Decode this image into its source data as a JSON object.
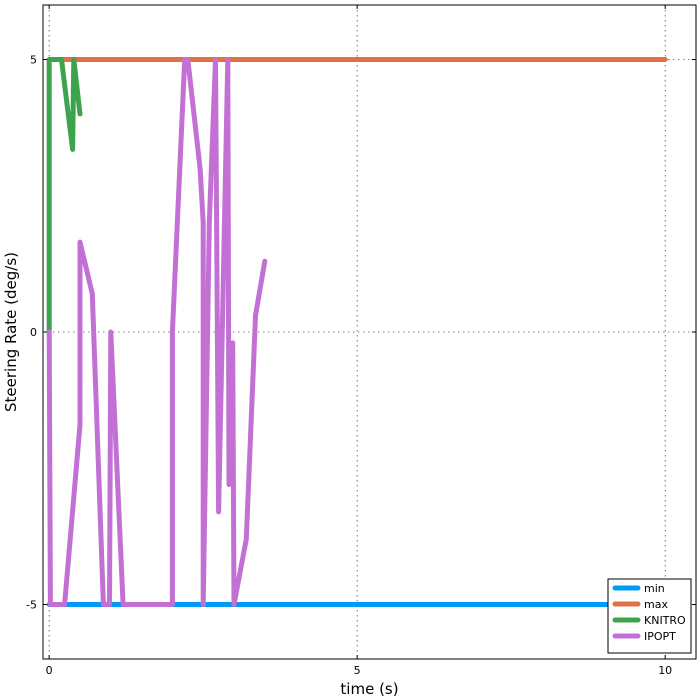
{
  "chart_data": {
    "type": "line",
    "title": "",
    "xlabel": "time (s)",
    "ylabel": "Steering Rate (deg/s)",
    "xlim": [
      -0.1,
      10.5
    ],
    "ylim": [
      -6.0,
      6.0
    ],
    "xticks": [
      0,
      5,
      10
    ],
    "xtick_labels": [
      "0",
      "5",
      "10"
    ],
    "yticks": [
      -5,
      0,
      5
    ],
    "ytick_labels": [
      "-5",
      "0",
      "5"
    ],
    "grid": true,
    "legend_position": "bottom-right",
    "series": [
      {
        "name": "min",
        "color": "#009af9",
        "x": [
          0,
          10
        ],
        "y": [
          -5,
          -5
        ]
      },
      {
        "name": "max",
        "color": "#e26f46",
        "x": [
          0,
          10
        ],
        "y": [
          5,
          5
        ]
      },
      {
        "name": "KNITRO",
        "color": "#3da44d",
        "x": [
          0,
          0,
          0.2,
          0.38,
          0.4,
          0.5
        ],
        "y": [
          0,
          5,
          5,
          3.35,
          5,
          4.0
        ]
      },
      {
        "name": "IPOPT",
        "color": "#c270d4",
        "x": [
          0,
          0.02,
          0.25,
          0.5,
          0.5,
          0.7,
          0.88,
          0.98,
          1.0,
          1.2,
          1.5,
          1.6,
          2.0,
          2.0,
          2.2,
          2.25,
          2.45,
          2.5,
          2.5,
          2.6,
          2.7,
          2.75,
          2.9,
          2.92,
          2.98,
          3.0,
          3.2,
          3.35,
          3.5
        ],
        "y": [
          0,
          -5,
          -5,
          -1.7,
          1.65,
          0.7,
          -5,
          -5,
          0,
          -5,
          -5,
          -5,
          -5,
          0,
          5,
          5,
          3.0,
          2.0,
          -5,
          2.0,
          5,
          -3.3,
          5,
          -2.8,
          -0.2,
          -5,
          -3.8,
          0.3,
          1.3
        ]
      }
    ]
  }
}
